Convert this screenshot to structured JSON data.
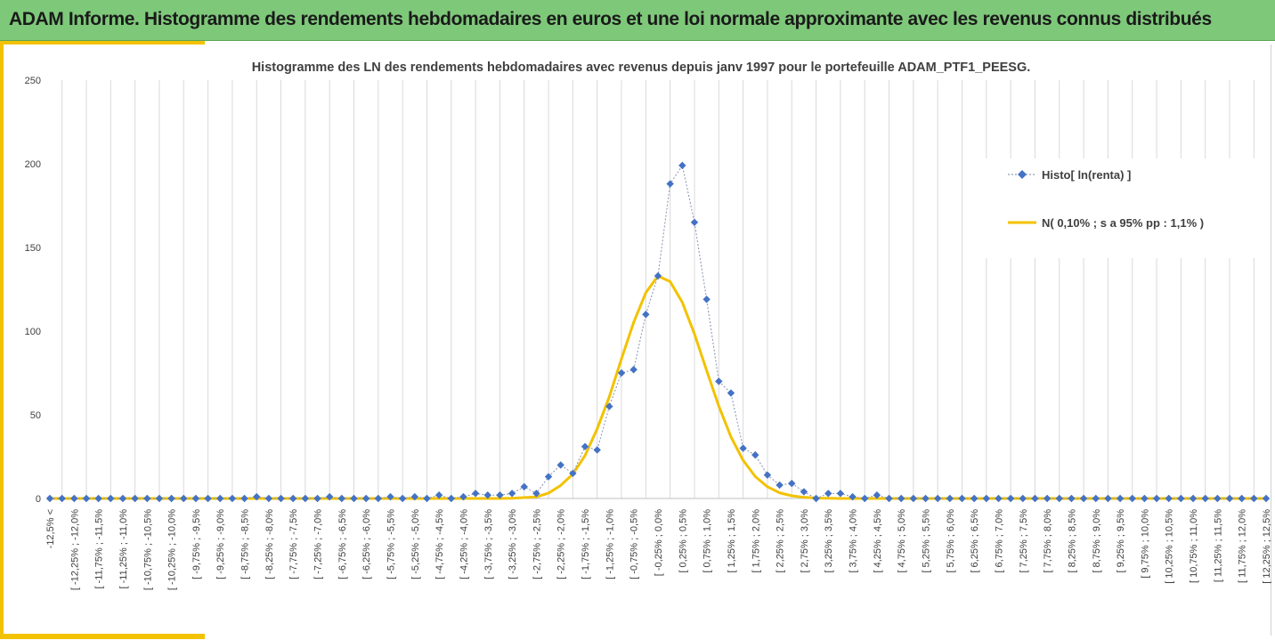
{
  "header": {
    "title": "ADAM Informe. Histogramme des rendements hebdomadaires en euros et une loi normale approximante avec les revenus connus distribués"
  },
  "colors": {
    "banner": "#7ec87a",
    "accent": "#f2c200",
    "histo_series": "#4472c4",
    "normal_series": "#f2c200",
    "grid": "#d9d9d9"
  },
  "chart_data": {
    "type": "line",
    "title": "Histogramme des LN des rendements hebdomadaires avec revenus depuis janv 1997 pour le portefeuille ADAM_PTF1_PEESG.",
    "xlabel": "",
    "ylabel": "",
    "ylim": [
      0,
      250
    ],
    "yticks": [
      0,
      50,
      100,
      150,
      200,
      250
    ],
    "grid": "vertical",
    "legend_position": "right",
    "categories": [
      "-12,5% <",
      "[ -12,25% ; -12,0%",
      "[ -11,75% ; -11,5%",
      "[ -11,25% ; -11,0%",
      "[ -10,75% ; -10,5%",
      "[ -10,25% ; -10,0%",
      "[ -9,75% ; -9,5%",
      "[ -9,25% ; -9,0%",
      "[ -8,75% ; -8,5%",
      "[ -8,25% ; -8,0%",
      "[ -7,75% ; -7,5%",
      "[ -7,25% ; -7,0%",
      "[ -6,75% ; -6,5%",
      "[ -6,25% ; -6,0%",
      "[ -5,75% ; -5,5%",
      "[ -5,25% ; -5,0%",
      "[ -4,75% ; -4,5%",
      "[ -4,25% ; -4,0%",
      "[ -3,75% ; -3,5%",
      "[ -3,25% ; -3,0%",
      "[ -2,75% ; -2,5%",
      "[ -2,25% ; -2,0%",
      "[ -1,75% ; -1,5%",
      "[ -1,25% ; -1,0%",
      "[ -0,75% ; -0,5%",
      "[ -0,25% ; 0,0%",
      "[ 0,25% ; 0,5%",
      "[ 0,75% ; 1,0%",
      "[ 1,25% ; 1,5%",
      "[ 1,75% ; 2,0%",
      "[ 2,25% ; 2,5%",
      "[ 2,75% ; 3,0%",
      "[ 3,25% ; 3,5%",
      "[ 3,75% ; 4,0%",
      "[ 4,25% ; 4,5%",
      "[ 4,75% ; 5,0%",
      "[ 5,25% ; 5,5%",
      "[ 5,75% ; 6,0%",
      "[ 6,25% ; 6,5%",
      "[ 6,75% ; 7,0%",
      "[ 7,25% ; 7,5%",
      "[ 7,75% ; 8,0%",
      "[ 8,25% ; 8,5%",
      "[ 8,75% ; 9,0%",
      "[ 9,25% ; 9,5%",
      "[ 9,75% ; 10,0%",
      "[ 10,25% ; 10,5%",
      "[ 10,75% ; 11,0%",
      "[ 11,25% ; 11,5%",
      "[ 11,75% ; 12,0%",
      "[ 12,25% ; 12,5%"
    ],
    "x": [
      -12.5,
      -12.25,
      -12,
      -11.75,
      -11.5,
      -11.25,
      -11,
      -10.75,
      -10.5,
      -10.25,
      -10,
      -9.75,
      -9.5,
      -9.25,
      -9,
      -8.75,
      -8.5,
      -8.25,
      -8,
      -7.75,
      -7.5,
      -7.25,
      -7,
      -6.75,
      -6.5,
      -6.25,
      -6,
      -5.75,
      -5.5,
      -5.25,
      -5,
      -4.75,
      -4.5,
      -4.25,
      -4,
      -3.75,
      -3.5,
      -3.25,
      -3,
      -2.75,
      -2.5,
      -2.25,
      -2,
      -1.75,
      -1.5,
      -1.25,
      -1,
      -0.75,
      -0.5,
      -0.25,
      0,
      0.25,
      0.5,
      0.75,
      1,
      1.25,
      1.5,
      1.75,
      2,
      2.25,
      2.5,
      2.75,
      3,
      3.25,
      3.5,
      3.75,
      4,
      4.25,
      4.5,
      4.75,
      5,
      5.25,
      5.5,
      5.75,
      6,
      6.25,
      6.5,
      6.75,
      7,
      7.25,
      7.5,
      7.75,
      8,
      8.25,
      8.5,
      8.75,
      9,
      9.25,
      9.5,
      9.75,
      10,
      10.25,
      10.5,
      10.75,
      11,
      11.25,
      11.5,
      11.75,
      12,
      12.25,
      12.5
    ],
    "series": [
      {
        "name": "Histo[ ln(renta) ]",
        "style": "dotted-diamond",
        "values": [
          0,
          0,
          0,
          0,
          0,
          0,
          0,
          0,
          0,
          0,
          0,
          0,
          0,
          0,
          0,
          0,
          0,
          1,
          0,
          0,
          0,
          0,
          0,
          1,
          0,
          0,
          0,
          0,
          1,
          0,
          1,
          0,
          2,
          0,
          1,
          3,
          2,
          2,
          3,
          7,
          3,
          13,
          20,
          15,
          31,
          29,
          55,
          75,
          77,
          110,
          133,
          188,
          199,
          165,
          119,
          70,
          63,
          30,
          26,
          14,
          8,
          9,
          4,
          0,
          3,
          3,
          1,
          0,
          2,
          0,
          0,
          0,
          0,
          0,
          0,
          0,
          0,
          0,
          0,
          0,
          0,
          0,
          0,
          0,
          0,
          0,
          0,
          0,
          0,
          0,
          0,
          0,
          0,
          0,
          0,
          0,
          0,
          0,
          0,
          0,
          0
        ]
      },
      {
        "name": "N( 0,10% ; s a 95% pp : 1,1% )",
        "style": "solid",
        "values": [
          0,
          0,
          0,
          0,
          0,
          0,
          0,
          0,
          0,
          0,
          0,
          0,
          0,
          0,
          0,
          0,
          0,
          0,
          0,
          0,
          0,
          0,
          0,
          0,
          0,
          0,
          0,
          0,
          0,
          0,
          0,
          0,
          0,
          0,
          0,
          0,
          0,
          0,
          0.1,
          0.5,
          0.9,
          3.2,
          7.8,
          14.6,
          25.6,
          41.6,
          60.8,
          83.5,
          105.2,
          123.0,
          133.0,
          129.6,
          117.2,
          98.3,
          76.5,
          55.2,
          36.8,
          22.8,
          13.1,
          7.0,
          3.4,
          1.6,
          0.7,
          0.2,
          0.1,
          0,
          0,
          0,
          0,
          0,
          0,
          0,
          0,
          0,
          0,
          0,
          0,
          0,
          0,
          0,
          0,
          0,
          0,
          0,
          0,
          0,
          0,
          0,
          0,
          0,
          0,
          0,
          0,
          0,
          0,
          0,
          0,
          0,
          0,
          0,
          0
        ]
      }
    ]
  }
}
